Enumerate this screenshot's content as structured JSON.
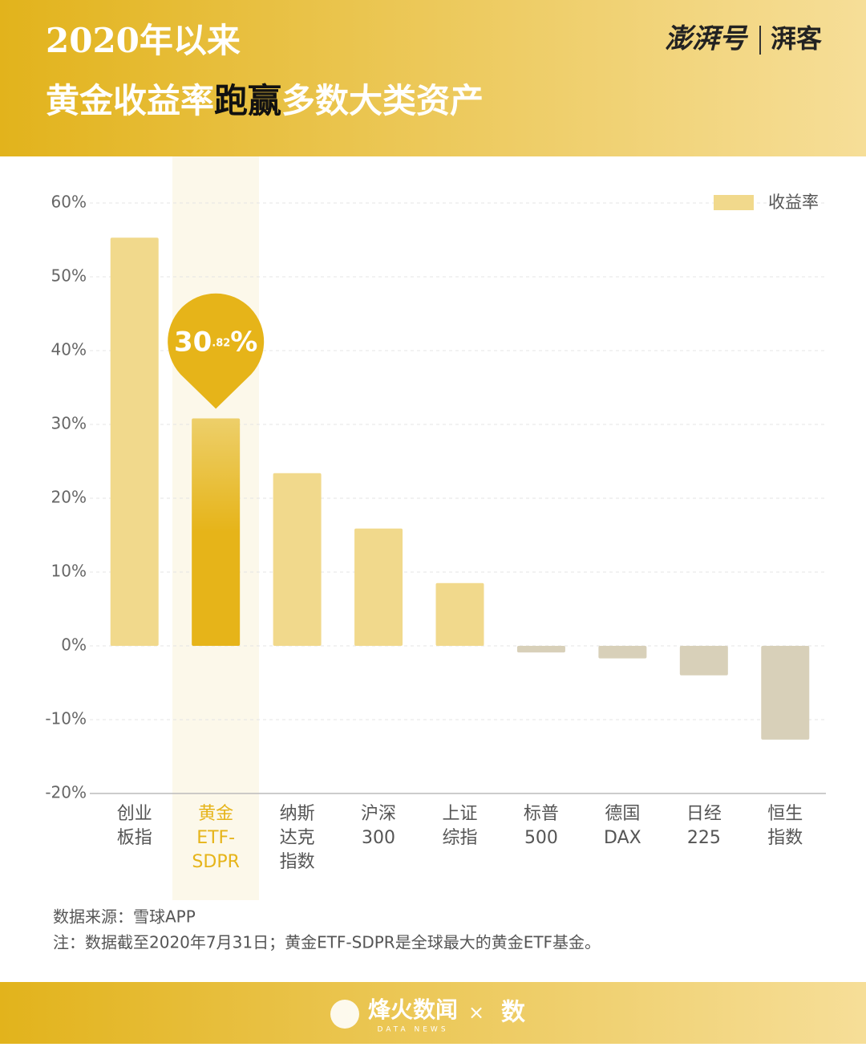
{
  "header": {
    "title_lines": [
      "2020年以来",
      "黄金收益率跑赢多数大类资产"
    ],
    "title_emphasis": "跑赢",
    "logo_left": "澎湃号",
    "logo_right": "湃客"
  },
  "chart_data": {
    "type": "bar",
    "categories": [
      [
        "创业",
        "板指"
      ],
      [
        "黄金",
        "ETF-",
        "SDPR"
      ],
      [
        "纳斯",
        "达克",
        "指数"
      ],
      [
        "沪深",
        "300"
      ],
      [
        "上证",
        "综指"
      ],
      [
        "标普",
        "500"
      ],
      [
        "德国",
        "DAX"
      ],
      [
        "日经",
        "225"
      ],
      [
        "恒生",
        "指数"
      ]
    ],
    "series": [
      {
        "name": "收益率",
        "values": [
          55.3,
          30.82,
          23.4,
          15.9,
          8.5,
          -0.9,
          -1.7,
          -4,
          -12.7
        ],
        "colors": [
          "#f1d98c",
          "#e6b419",
          "#f1d98c",
          "#f1d98c",
          "#f1d98c",
          "#d8d0b9",
          "#d8d0b9",
          "#d8d0b9",
          "#d8d0b9"
        ]
      }
    ],
    "highlight_index": 1,
    "highlight_label": "30.82%",
    "highlight_color": "#e6b419",
    "ylim": [
      -20,
      60
    ],
    "yticks": [
      {
        "value": -20,
        "label": "-20%"
      },
      {
        "value": -10,
        "label": "-10%"
      },
      {
        "value": 0,
        "label": "0%"
      },
      {
        "value": 10,
        "label": "10%"
      },
      {
        "value": 20,
        "label": "20%"
      },
      {
        "value": 30,
        "label": "30%"
      },
      {
        "value": 40,
        "label": "40%"
      },
      {
        "value": 50,
        "label": "50%"
      },
      {
        "value": 60,
        "label": "60%"
      }
    ],
    "grid": true,
    "legend": "upper right"
  },
  "footer": {
    "source": "数据来源：雪球APP",
    "note": "注：数据截至2020年7月31日；黄金ETF-SDPR是全球最大的黄金ETF基金。",
    "brand": "烽火数闻",
    "brand_sub": "DATA NEWS",
    "times": "×",
    "partner": "数"
  }
}
